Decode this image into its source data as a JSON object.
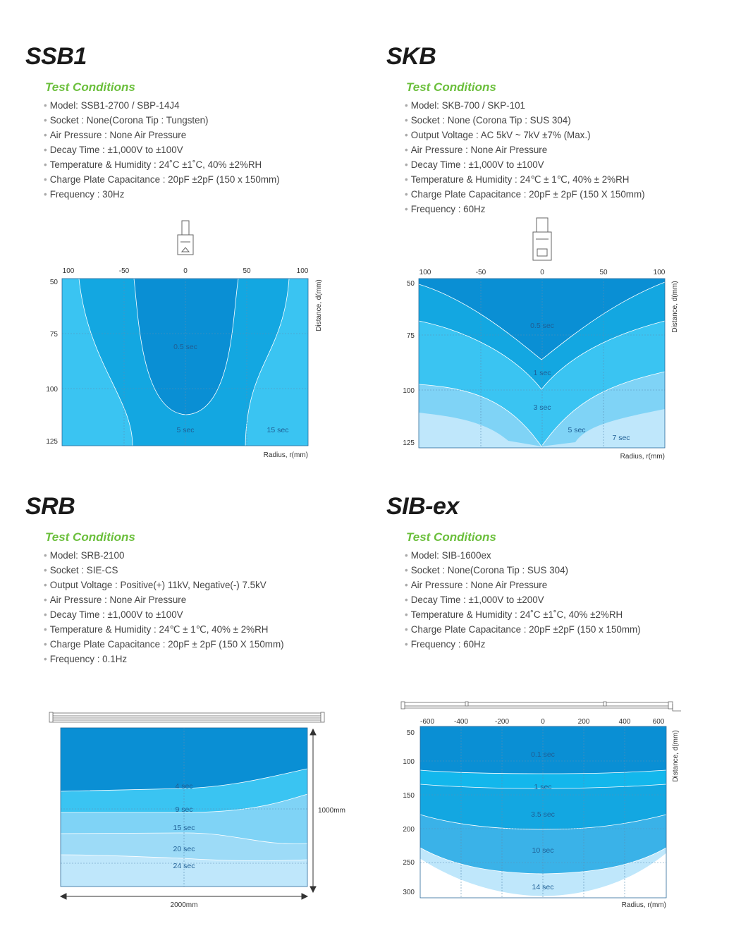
{
  "sections": [
    {
      "title": "SSB1",
      "heading": "Test Conditions",
      "conditions": [
        "Model: SSB1-2700 / SBP-14J4",
        "Socket : None(Corona Tip : Tungsten)",
        "Air Pressure : None Air Pressure",
        "Decay Time : ±1,000V to ±100V",
        "Temperature & Humidity : 24˚C ±1˚C, 40% ±2%RH",
        "Charge Plate Capacitance : 20pF ±2pF (150 x 150mm)",
        "Frequency : 30Hz"
      ]
    },
    {
      "title": "SKB",
      "heading": "Test Conditions",
      "conditions": [
        "Model: SKB-700 / SKP-101",
        "Socket : None (Corona Tip : SUS 304)",
        "Output Voltage : AC 5kV ~ 7kV ±7% (Max.)",
        "Air Pressure : None Air Pressure",
        "Decay Time : ±1,000V to ±100V",
        "Temperature & Humidity : 24℃ ± 1℃, 40% ± 2%RH",
        "Charge Plate Capacitance : 20pF ± 2pF (150 X 150mm)",
        "Frequency : 60Hz"
      ]
    },
    {
      "title": "SRB",
      "heading": "Test Conditions",
      "conditions": [
        "Model: SRB-2100",
        "Socket : SIE-CS",
        "Output Voltage : Positive(+) 11kV, Negative(-) 7.5kV",
        "Air Pressure : None Air Pressure",
        "Decay Time : ±1,000V to ±100V",
        "Temperature & Humidity : 24℃ ± 1℃, 40% ± 2%RH",
        "Charge Plate Capacitance : 20pF ± 2pF (150 X 150mm)",
        "Frequency : 0.1Hz"
      ]
    },
    {
      "title": "SIB-ex",
      "heading": "Test Conditions",
      "conditions": [
        "Model: SIB-1600ex",
        "Socket : None(Corona Tip : SUS 304)",
        "Air Pressure : None Air Pressure",
        "Decay Time : ±1,000V to ±200V",
        "Temperature & Humidity : 24˚C ±1˚C, 40% ±2%RH",
        "Charge Plate Capacitance : 20pF ±2pF (150 x 150mm)",
        "Frequency : 60Hz"
      ]
    }
  ],
  "chart_data": [
    {
      "type": "heatmap",
      "title": "SSB1",
      "xlabel": "Radius, r(mm)",
      "ylabel": "Distance, d(mm)",
      "x_ticks": [
        "100",
        "-50",
        "0",
        "50",
        "100"
      ],
      "y_ticks": [
        "50",
        "75",
        "100",
        "125"
      ],
      "zones": [
        "0.5 sec",
        "5 sec",
        "15 sec"
      ]
    },
    {
      "type": "heatmap",
      "title": "SKB",
      "xlabel": "Radius, r(mm)",
      "ylabel": "Distance, d(mm)",
      "x_ticks": [
        "100",
        "-50",
        "0",
        "50",
        "100"
      ],
      "y_ticks": [
        "50",
        "75",
        "100",
        "125"
      ],
      "zones": [
        "0.5 sec",
        "1 sec",
        "3 sec",
        "5 sec",
        "7 sec"
      ]
    },
    {
      "type": "heatmap",
      "title": "SRB",
      "xlabel": "2000mm",
      "ylabel": "1000mm",
      "zones": [
        "4 sec",
        "9 sec",
        "15 sec",
        "20 sec",
        "24 sec"
      ]
    },
    {
      "type": "heatmap",
      "title": "SIB-ex",
      "xlabel": "Radius, r(mm)",
      "ylabel": "Distance, d(mm)",
      "x_ticks": [
        "-600",
        "-400",
        "-200",
        "0",
        "200",
        "400",
        "600"
      ],
      "y_ticks": [
        "50",
        "100",
        "150",
        "200",
        "250",
        "300"
      ],
      "zones": [
        "0.1 sec",
        "1 sec",
        "3.5 sec",
        "10 sec",
        "14 sec"
      ]
    }
  ],
  "colors": {
    "z1": "#0a8fd4",
    "z2": "#13a7e1",
    "z3": "#3ac4f2",
    "z4": "#7fd3f6",
    "z5": "#bfe7fb",
    "title_green": "#6bbf3c"
  }
}
